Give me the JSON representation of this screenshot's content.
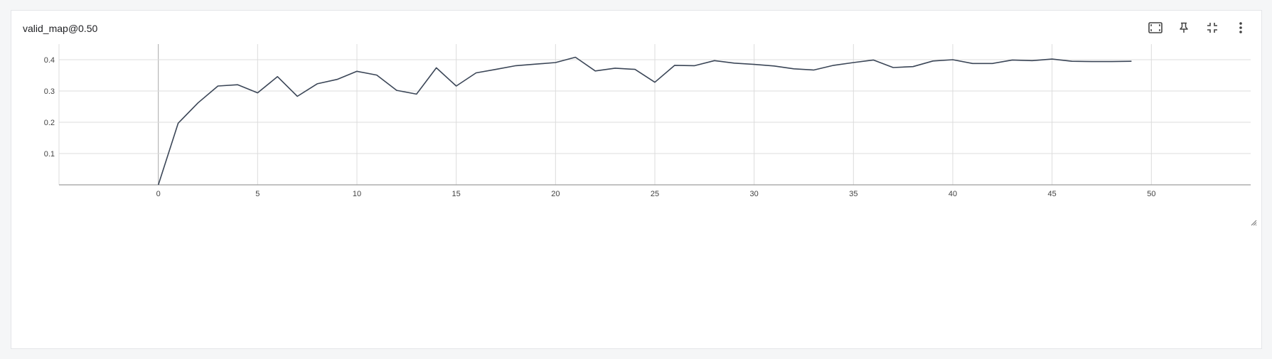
{
  "card": {
    "title": "valid_map@0.50"
  },
  "toolbar": {
    "buttons": [
      {
        "name": "fit-to-data-button",
        "icon": "fit-screen-icon"
      },
      {
        "name": "pin-button",
        "icon": "pin-icon"
      },
      {
        "name": "collapse-button",
        "icon": "collapse-icon"
      },
      {
        "name": "more-options-button",
        "icon": "more-vert-icon"
      }
    ]
  },
  "colors": {
    "line": "#3b4657",
    "grid": "#dcdcdc",
    "axis": "#9e9e9e",
    "zero_line": "#a9a9a9"
  },
  "chart_data": {
    "type": "line",
    "title": "valid_map@0.50",
    "xlabel": "",
    "ylabel": "",
    "xlim": [
      -5,
      55
    ],
    "ylim": [
      0,
      0.45
    ],
    "x_ticks": [
      0,
      5,
      10,
      15,
      20,
      25,
      30,
      35,
      40,
      45,
      50
    ],
    "y_ticks": [
      0,
      0.1,
      0.2,
      0.3,
      0.4
    ],
    "y_tick_labels": [
      "",
      "0.1",
      "0.2",
      "0.3",
      "0.4"
    ],
    "grid": true,
    "series": [
      {
        "x": [
          0,
          1,
          2,
          3,
          4,
          5,
          6,
          7,
          8,
          9,
          10,
          11,
          12,
          13,
          14,
          15,
          16,
          17,
          18,
          19,
          20,
          21,
          22,
          23,
          24,
          25,
          26,
          27,
          28,
          29,
          30,
          31,
          32,
          33,
          34,
          35,
          36,
          37,
          38,
          39,
          40,
          41,
          42,
          43,
          44,
          45,
          46,
          47,
          48,
          49
        ],
        "values": [
          0.0,
          0.197,
          0.262,
          0.316,
          0.32,
          0.294,
          0.346,
          0.283,
          0.323,
          0.337,
          0.363,
          0.351,
          0.302,
          0.29,
          0.374,
          0.316,
          0.358,
          0.369,
          0.381,
          0.386,
          0.391,
          0.408,
          0.364,
          0.373,
          0.369,
          0.328,
          0.382,
          0.381,
          0.397,
          0.389,
          0.385,
          0.38,
          0.371,
          0.367,
          0.382,
          0.391,
          0.399,
          0.375,
          0.378,
          0.396,
          0.4,
          0.388,
          0.388,
          0.399,
          0.397,
          0.402,
          0.395,
          0.394,
          0.394,
          0.395
        ]
      }
    ]
  }
}
